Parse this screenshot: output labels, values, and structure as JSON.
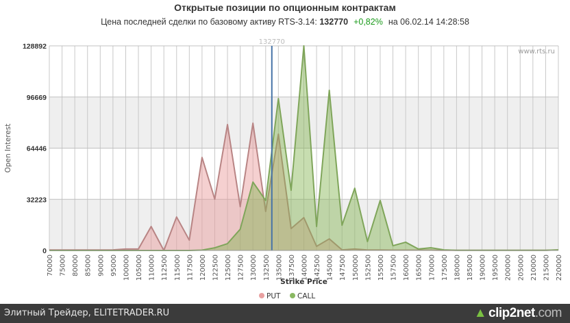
{
  "header": {
    "title": "Открытые позиции по опционным контрактам",
    "subtitle_prefix": "Цена последней сделки по базовому активу RTS-3.14:",
    "price": "132770",
    "change": "+0,82%",
    "date_text": "на 06.02.14 14:28:58"
  },
  "watermark": "www.rts.ru",
  "footer": {
    "source": "Элитный Трейдер, ELITETRADER.RU",
    "logo": "clip2net.com"
  },
  "colors": {
    "put": "#e8a0a0",
    "call": "#8ab862",
    "price_line": "#4572a7"
  },
  "chart_data": {
    "type": "area",
    "title": "Открытые позиции по опционным контрактам",
    "xlabel": "Strike Price",
    "ylabel": "Open Interest",
    "ylim": [
      0,
      128892
    ],
    "yticks": [
      "0",
      "32223",
      "64446",
      "96669",
      "128892"
    ],
    "grid": true,
    "legend": "bottom-center",
    "price_marker": {
      "value": 132770,
      "label": "132770"
    },
    "categories": [
      "70000",
      "75000",
      "80000",
      "85000",
      "90000",
      "95000",
      "100000",
      "105000",
      "110000",
      "112500",
      "115000",
      "117500",
      "120000",
      "122500",
      "125000",
      "127500",
      "130000",
      "132500",
      "135000",
      "137500",
      "140000",
      "142500",
      "145000",
      "147500",
      "150000",
      "152500",
      "155000",
      "157500",
      "160000",
      "165000",
      "170000",
      "175000",
      "180000",
      "185000",
      "190000",
      "195000",
      "200000",
      "205000",
      "210000",
      "215000",
      "220000"
    ],
    "series": [
      {
        "name": "PUT",
        "values": [
          300,
          300,
          300,
          300,
          300,
          400,
          900,
          900,
          15100,
          0,
          21100,
          6500,
          58600,
          32300,
          79300,
          27600,
          80200,
          24600,
          73300,
          13800,
          20700,
          2600,
          7300,
          400,
          900,
          300,
          300,
          200,
          200,
          200,
          200,
          100,
          100,
          100,
          100,
          100,
          100,
          100,
          100,
          100,
          300
        ]
      },
      {
        "name": "CALL",
        "values": [
          0,
          0,
          0,
          0,
          0,
          0,
          0,
          0,
          0,
          0,
          0,
          0,
          200,
          1700,
          4300,
          13400,
          43100,
          31500,
          95700,
          37900,
          128892,
          15100,
          100900,
          15900,
          39200,
          5600,
          31500,
          3000,
          5200,
          900,
          1700,
          400,
          100,
          100,
          100,
          100,
          100,
          100,
          100,
          100,
          400
        ]
      }
    ]
  }
}
